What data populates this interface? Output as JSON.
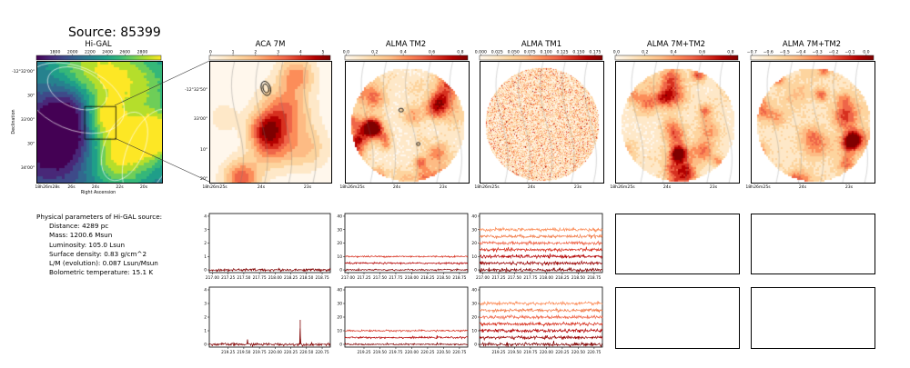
{
  "source_title": "Source: 85399",
  "panels": [
    {
      "title": "Hi-GAL",
      "ticks": [
        "1800",
        "2000",
        "2200",
        "2400",
        "2600",
        "2800"
      ],
      "cmap": "viridis"
    },
    {
      "title": "ACA 7M",
      "ticks": [
        "0",
        "1",
        "2",
        "3",
        "4",
        "5"
      ],
      "cmap": "orrd"
    },
    {
      "title": "ALMA TM2",
      "ticks": [
        "0.0",
        "0.2",
        "0.4",
        "0.6",
        "0.8"
      ],
      "cmap": "orrd"
    },
    {
      "title": "ALMA TM1",
      "ticks": [
        "0.000",
        "0.025",
        "0.050",
        "0.075",
        "0.100",
        "0.125",
        "0.150",
        "0.175"
      ],
      "cmap": "orrd"
    },
    {
      "title": "ALMA 7M+TM2",
      "ticks": [
        "0.0",
        "0.2",
        "0.4",
        "0.6",
        "0.8"
      ],
      "cmap": "orrd"
    },
    {
      "title": "ALMA 7M+TM2",
      "ticks": [
        "−0.7",
        "−0.6",
        "−0.5",
        "−0.4",
        "−0.3",
        "−0.2",
        "−0.1",
        "0.0"
      ],
      "cmap": "orrd"
    }
  ],
  "higal_axes": {
    "ylabel": "Declination",
    "xlabel": "Right Ascension",
    "yticks": [
      "-12°32'00\"",
      "30\"",
      "33'00\"",
      "30\"",
      "34'00\""
    ],
    "xticks": [
      "18h26m28s",
      "26s",
      "24s",
      "22s",
      "20s"
    ]
  },
  "aca_axes": {
    "yticks": [
      "-12°32'50\"",
      "33'00\"",
      "10\"",
      "20\""
    ],
    "xticks": [
      "18h26m25s",
      "24s",
      "23s"
    ]
  },
  "alma_xticks": [
    "18h26m25s",
    "24s",
    "23s"
  ],
  "params": {
    "header": "Physical parameters of Hi-GAL source:",
    "lines": [
      "Distance: 4289 pc",
      "Mass: 1200.6 Msun",
      "Luminosity: 105.0 Lsun",
      "Surface density: 0.83 g/cm^2",
      "L/M (evolution): 0.087 Lsun/Msun",
      "Bolometric temperature: 15.1 K"
    ]
  },
  "chart_data": [
    {
      "type": "line",
      "panel": "ACA 7M spectrum, row 1",
      "x_range": [
        216.95,
        218.88
      ],
      "ylim": [
        -0.2,
        4.2
      ],
      "xticks": [
        "217.00",
        "217.25",
        "217.50",
        "217.75",
        "218.00",
        "218.25",
        "218.50",
        "218.75"
      ],
      "yticks": [
        "0",
        "1",
        "2",
        "3",
        "4"
      ],
      "series": [
        {
          "offset": 0,
          "color": "#7f0000",
          "noise": 0.05
        }
      ]
    },
    {
      "type": "line",
      "panel": "ALMA TM2 spectrum, row 1",
      "x_range": [
        216.95,
        218.88
      ],
      "ylim": [
        -2,
        42
      ],
      "xticks": [
        "217.00",
        "217.25",
        "217.50",
        "217.75",
        "218.00",
        "218.25",
        "218.50",
        "218.75"
      ],
      "yticks": [
        "0",
        "10",
        "20",
        "30",
        "40"
      ],
      "series": [
        {
          "offset": 0,
          "color": "#7f0000",
          "noise": 0.3
        },
        {
          "offset": 5,
          "color": "#b30000",
          "noise": 0.3
        },
        {
          "offset": 10,
          "color": "#d7301f",
          "noise": 0.3
        }
      ]
    },
    {
      "type": "line",
      "panel": "ALMA TM1 spectrum, row 1",
      "x_range": [
        216.95,
        218.88
      ],
      "ylim": [
        -2,
        42
      ],
      "xticks": [
        "217.00",
        "217.25",
        "217.50",
        "217.75",
        "218.00",
        "218.25",
        "218.50",
        "218.75"
      ],
      "yticks": [
        "0",
        "10",
        "20",
        "30",
        "40"
      ],
      "series": [
        {
          "offset": 0,
          "color": "#7f0000",
          "noise": 0.6
        },
        {
          "offset": 5,
          "color": "#990000",
          "noise": 0.6
        },
        {
          "offset": 10,
          "color": "#b30000",
          "noise": 0.6
        },
        {
          "offset": 15,
          "color": "#d7301f",
          "noise": 0.6
        },
        {
          "offset": 20,
          "color": "#ef6548",
          "noise": 0.6
        },
        {
          "offset": 25,
          "color": "#f17c4a",
          "noise": 0.6
        },
        {
          "offset": 30,
          "color": "#fc8d59",
          "noise": 0.6
        }
      ]
    },
    {
      "type": "line",
      "panel": "ACA 7M spectrum, row 2",
      "x_range": [
        218.95,
        220.88
      ],
      "ylim": [
        -0.2,
        4.2
      ],
      "xticks": [
        "219.25",
        "219.50",
        "219.75",
        "220.00",
        "220.25",
        "220.50",
        "220.75"
      ],
      "yticks": [
        "0",
        "1",
        "2",
        "3",
        "4"
      ],
      "series": [
        {
          "offset": 0,
          "color": "#7f0000",
          "noise": 0.05,
          "peaks": [
            [
              219.56,
              0.35
            ],
            [
              220.4,
              1.8
            ]
          ]
        }
      ]
    },
    {
      "type": "line",
      "panel": "ALMA TM2 spectrum, row 2",
      "x_range": [
        218.95,
        220.88
      ],
      "ylim": [
        -2,
        42
      ],
      "xticks": [
        "219.25",
        "219.50",
        "219.75",
        "220.00",
        "220.25",
        "220.50",
        "220.75"
      ],
      "yticks": [
        "0",
        "10",
        "20",
        "30",
        "40"
      ],
      "series": [
        {
          "offset": 0,
          "color": "#7f0000",
          "noise": 0.3,
          "peaks": [
            [
              220.4,
              1.5
            ]
          ]
        },
        {
          "offset": 5,
          "color": "#b30000",
          "noise": 0.3,
          "peaks": [
            [
              220.4,
              1.0
            ]
          ]
        },
        {
          "offset": 10,
          "color": "#d7301f",
          "noise": 0.3,
          "peaks": [
            [
              220.4,
              0.8
            ]
          ]
        }
      ]
    },
    {
      "type": "line",
      "panel": "ALMA TM1 spectrum, row 2",
      "x_range": [
        218.95,
        220.88
      ],
      "ylim": [
        -2,
        42
      ],
      "xticks": [
        "219.25",
        "219.50",
        "219.75",
        "220.00",
        "220.25",
        "220.50",
        "220.75"
      ],
      "yticks": [
        "0",
        "10",
        "20",
        "30",
        "40"
      ],
      "series": [
        {
          "offset": 0,
          "color": "#7f0000",
          "noise": 0.6
        },
        {
          "offset": 5,
          "color": "#990000",
          "noise": 0.6
        },
        {
          "offset": 10,
          "color": "#b30000",
          "noise": 0.6
        },
        {
          "offset": 15,
          "color": "#d7301f",
          "noise": 0.6
        },
        {
          "offset": 20,
          "color": "#ef6548",
          "noise": 0.6
        },
        {
          "offset": 25,
          "color": "#f17c4a",
          "noise": 0.6
        },
        {
          "offset": 30,
          "color": "#fc8d59",
          "noise": 0.6
        }
      ]
    }
  ]
}
